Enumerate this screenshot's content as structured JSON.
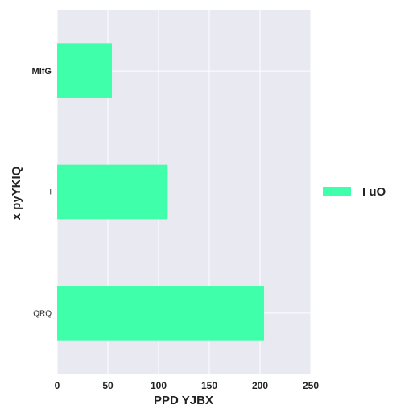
{
  "chart_data": {
    "type": "bar",
    "orientation": "horizontal",
    "categories": [
      "MIfG",
      "I",
      "QRQ"
    ],
    "series": [
      {
        "name": "I uO",
        "values": [
          54,
          109,
          204
        ]
      }
    ],
    "xlabel": "PPD YJBX",
    "ylabel": "x pyYKIQ",
    "xlim": [
      0,
      250
    ],
    "xticks": [
      "0",
      "50",
      "100",
      "150",
      "200",
      "250"
    ],
    "grid": true,
    "legend_position": "right"
  },
  "colors": {
    "bar": "#40ffaa",
    "plot_background": "#e9e9f1",
    "grid": "#ffffff"
  }
}
